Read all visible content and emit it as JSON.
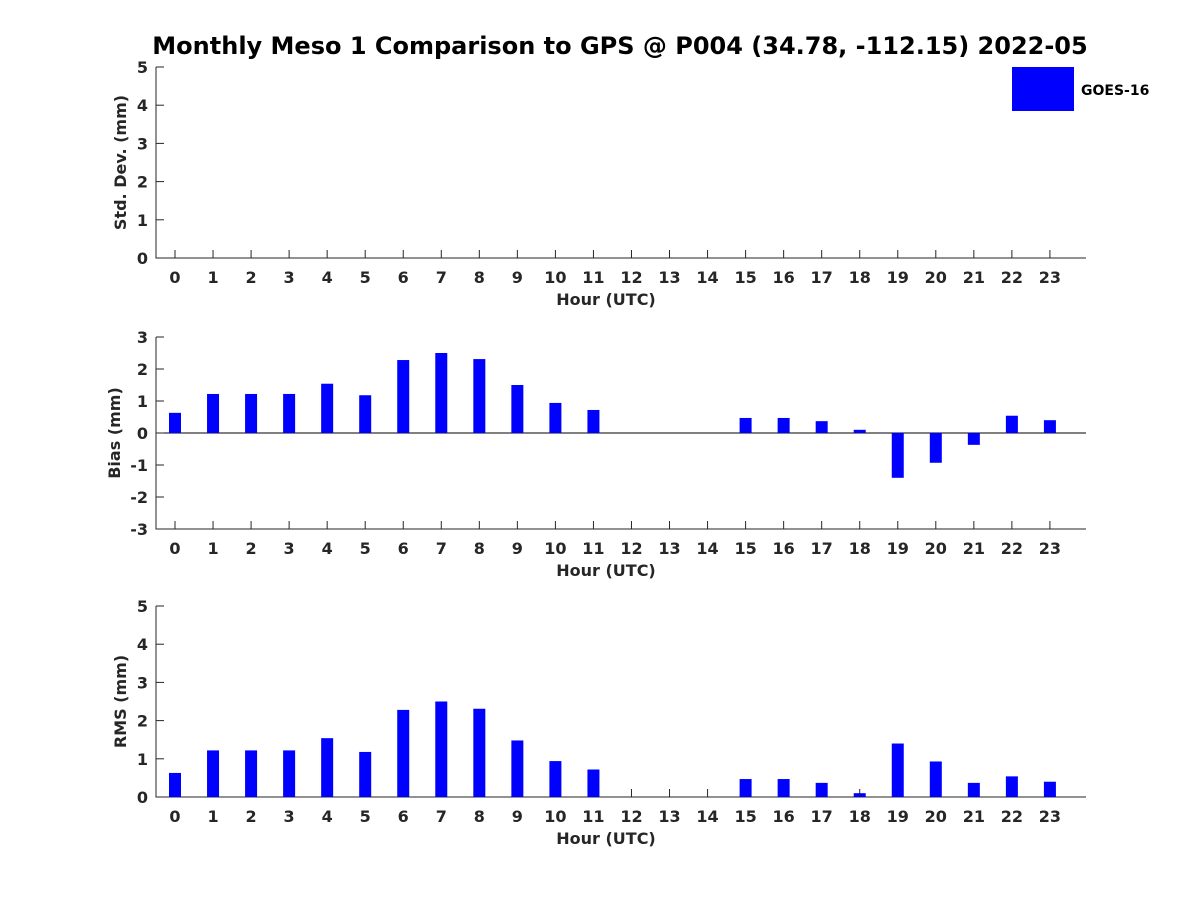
{
  "title": "Monthly Meso 1 Comparison to GPS @ P004 (34.78, -112.15) 2022-05",
  "legend": {
    "label": "GOES-16",
    "color": "#0000ff"
  },
  "chart_data": [
    {
      "type": "bar",
      "name": "stddev",
      "title": "Monthly Meso 1 Comparison to GPS @ P004 (34.78, -112.15) 2022-05",
      "xlabel": "Hour (UTC)",
      "ylabel": "Std. Dev. (mm)",
      "ylim": [
        0,
        5
      ],
      "yticks": [
        "0",
        "1",
        "2",
        "3",
        "4",
        "5"
      ],
      "categories": [
        "0",
        "1",
        "2",
        "3",
        "4",
        "5",
        "6",
        "7",
        "8",
        "9",
        "10",
        "11",
        "12",
        "13",
        "14",
        "15",
        "16",
        "17",
        "18",
        "19",
        "20",
        "21",
        "22",
        "23"
      ],
      "series": [
        {
          "name": "GOES-16",
          "values": [
            0,
            0,
            0,
            0,
            0,
            0,
            0,
            0,
            0,
            0,
            0,
            0,
            0,
            0,
            0,
            0,
            0,
            0,
            0,
            0,
            0,
            0,
            0,
            0
          ]
        }
      ]
    },
    {
      "type": "bar",
      "name": "bias",
      "xlabel": "Hour (UTC)",
      "ylabel": "Bias (mm)",
      "ylim": [
        -3,
        3
      ],
      "yticks": [
        "-3",
        "-2",
        "-1",
        "0",
        "1",
        "2",
        "3"
      ],
      "categories": [
        "0",
        "1",
        "2",
        "3",
        "4",
        "5",
        "6",
        "7",
        "8",
        "9",
        "10",
        "11",
        "12",
        "13",
        "14",
        "15",
        "16",
        "17",
        "18",
        "19",
        "20",
        "21",
        "22",
        "23"
      ],
      "series": [
        {
          "name": "GOES-16",
          "values": [
            0.63,
            1.22,
            1.22,
            1.22,
            1.54,
            1.18,
            2.28,
            2.5,
            2.31,
            1.5,
            0.94,
            0.72,
            0,
            0,
            0,
            0.47,
            0.47,
            0.37,
            0.1,
            -1.4,
            -0.93,
            -0.37,
            0.54,
            0.4
          ]
        }
      ]
    },
    {
      "type": "bar",
      "name": "rms",
      "xlabel": "Hour (UTC)",
      "ylabel": "RMS (mm)",
      "ylim": [
        0,
        5
      ],
      "yticks": [
        "0",
        "1",
        "2",
        "3",
        "4",
        "5"
      ],
      "categories": [
        "0",
        "1",
        "2",
        "3",
        "4",
        "5",
        "6",
        "7",
        "8",
        "9",
        "10",
        "11",
        "12",
        "13",
        "14",
        "15",
        "16",
        "17",
        "18",
        "19",
        "20",
        "21",
        "22",
        "23"
      ],
      "series": [
        {
          "name": "GOES-16",
          "values": [
            0.63,
            1.22,
            1.22,
            1.22,
            1.54,
            1.18,
            2.28,
            2.5,
            2.31,
            1.48,
            0.94,
            0.72,
            0,
            0,
            0,
            0.47,
            0.47,
            0.37,
            0.1,
            1.4,
            0.93,
            0.37,
            0.54,
            0.4
          ]
        }
      ]
    }
  ]
}
